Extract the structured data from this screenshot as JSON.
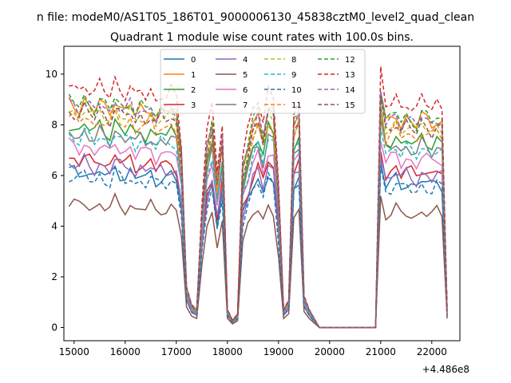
{
  "chart_data": {
    "type": "line",
    "suptitle": "n file: modeM0/AS1T05_186T01_9000006130_45838cztM0_level2_quad_clean",
    "title": "Quadrant 1 module wise count rates with 100.0s bins.",
    "xlabel": "",
    "ylabel": "",
    "x_offset_label": "+4.486e8",
    "xlim": [
      14800,
      22550
    ],
    "ylim": [
      -0.52,
      11.1
    ],
    "x_ticks": [
      15000,
      16000,
      17000,
      18000,
      19000,
      20000,
      21000,
      22000
    ],
    "y_ticks": [
      0,
      2,
      4,
      6,
      8,
      10
    ],
    "grid": false,
    "legend": {
      "position": "top-center",
      "columns": 4
    },
    "x": [
      14900,
      15000,
      15100,
      15200,
      15300,
      15400,
      15500,
      15600,
      15700,
      15800,
      15900,
      16000,
      16100,
      16200,
      16300,
      16400,
      16500,
      16600,
      16700,
      16800,
      16900,
      17000,
      17100,
      17200,
      17300,
      17400,
      17500,
      17600,
      17700,
      17800,
      17900,
      18000,
      18100,
      18200,
      18300,
      18400,
      18500,
      18600,
      18700,
      18800,
      18900,
      19000,
      19100,
      19200,
      19300,
      19400,
      19500,
      19600,
      19700,
      19800,
      19900,
      20000,
      20100,
      20200,
      20300,
      20400,
      20500,
      20600,
      20700,
      20800,
      20900,
      21000,
      21100,
      21200,
      21300,
      21400,
      21500,
      21600,
      21700,
      21800,
      21900,
      22000,
      22100,
      22200,
      22300
    ],
    "series": [
      {
        "name": "0",
        "color": "#1f77b4",
        "dashed": false,
        "level": 6.2,
        "dip": 4.0
      },
      {
        "name": "1",
        "color": "#ff7f0e",
        "dashed": false,
        "level": 8.9,
        "dip": 5.5
      },
      {
        "name": "2",
        "color": "#2ca02c",
        "dashed": false,
        "level": 8.0,
        "dip": 5.2
      },
      {
        "name": "3",
        "color": "#d62728",
        "dashed": false,
        "level": 6.7,
        "dip": 4.3
      },
      {
        "name": "4",
        "color": "#9467bd",
        "dashed": false,
        "level": 6.5,
        "dip": 4.1
      },
      {
        "name": "5",
        "color": "#8c564b",
        "dashed": false,
        "level": 4.9,
        "dip": 3.0
      },
      {
        "name": "6",
        "color": "#e377c2",
        "dashed": false,
        "level": 7.2,
        "dip": 4.6
      },
      {
        "name": "7",
        "color": "#7f7f7f",
        "dashed": false,
        "level": 7.7,
        "dip": 4.9
      },
      {
        "name": "8",
        "color": "#bcbd22",
        "dashed": true,
        "level": 8.6,
        "dip": 5.6
      },
      {
        "name": "9",
        "color": "#17becf",
        "dashed": true,
        "level": 7.6,
        "dip": 5.0
      },
      {
        "name": "10",
        "color": "#1f77b4",
        "dashed": true,
        "level": 6.0,
        "dip": 4.0
      },
      {
        "name": "11",
        "color": "#ff7f0e",
        "dashed": true,
        "level": 8.3,
        "dip": 5.4
      },
      {
        "name": "12",
        "color": "#2ca02c",
        "dashed": true,
        "level": 9.0,
        "dip": 5.8
      },
      {
        "name": "13",
        "color": "#d62728",
        "dashed": true,
        "level": 9.6,
        "dip": 6.0
      },
      {
        "name": "14",
        "color": "#9467bd",
        "dashed": true,
        "level": 8.9,
        "dip": 5.8
      },
      {
        "name": "15",
        "color": "#8c564b",
        "dashed": true,
        "level": 8.6,
        "dip": 5.7
      }
    ],
    "pattern": [
      1.0,
      0.99,
      0.97,
      1.01,
      0.98,
      0.96,
      1.0,
      0.97,
      0.95,
      1.02,
      0.98,
      0.96,
      0.99,
      0.94,
      0.97,
      0.95,
      0.98,
      0.93,
      0.96,
      0.95,
      0.97,
      0.94,
      0.75,
      0.45,
      0.25,
      0.2,
      0.5,
      0.8,
      0.9,
      0.65,
      0.85,
      0.2,
      0.08,
      0.15,
      0.7,
      0.8,
      0.9,
      0.95,
      0.85,
      0.98,
      0.95,
      0.6,
      0.2,
      0.3,
      0.9,
      0.95,
      0.35,
      0.2,
      0.1,
      0,
      0,
      0,
      0,
      0,
      0,
      0,
      0,
      0,
      0,
      0,
      0,
      1.05,
      0.9,
      0.92,
      0.95,
      0.9,
      0.93,
      0.91,
      0.89,
      0.94,
      0.92,
      0.9,
      0.93,
      0.91,
      0.2
    ],
    "legend_labels": [
      "0",
      "1",
      "2",
      "3",
      "4",
      "5",
      "6",
      "7",
      "8",
      "9",
      "10",
      "11",
      "12",
      "13",
      "14",
      "15"
    ]
  }
}
